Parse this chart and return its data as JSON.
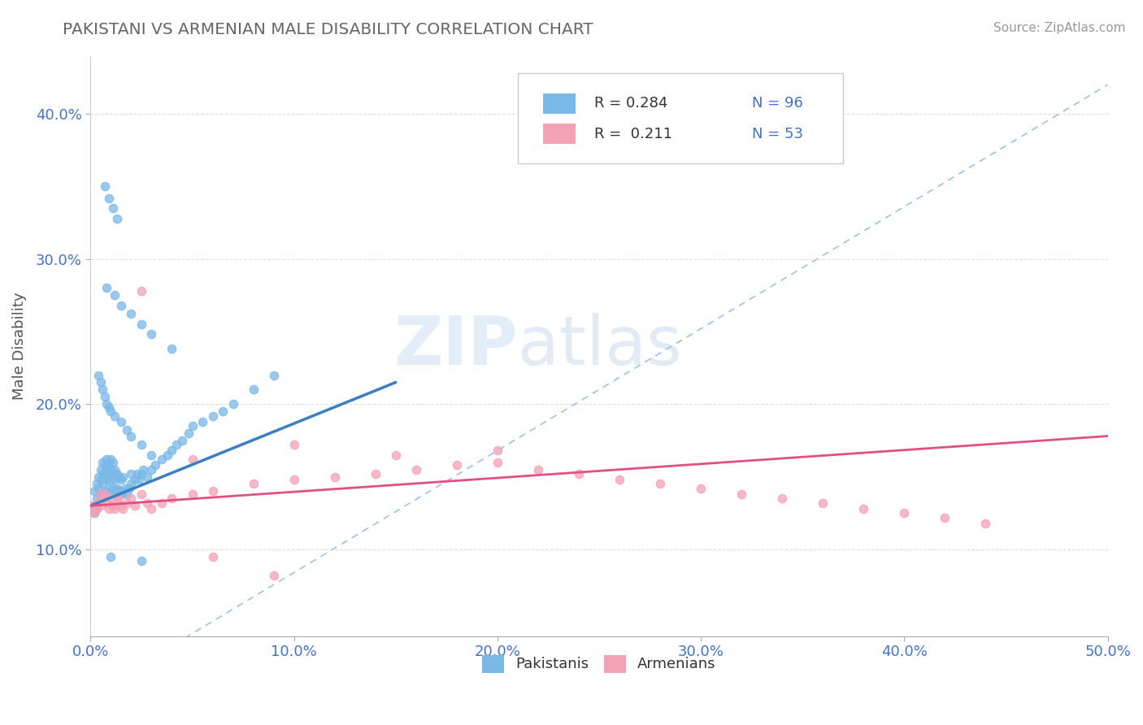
{
  "title": "PAKISTANI VS ARMENIAN MALE DISABILITY CORRELATION CHART",
  "source": "Source: ZipAtlas.com",
  "ylabel": "Male Disability",
  "xlim": [
    0.0,
    0.5
  ],
  "ylim": [
    0.04,
    0.44
  ],
  "xtick_vals": [
    0.0,
    0.1,
    0.2,
    0.3,
    0.4,
    0.5
  ],
  "ytick_vals": [
    0.1,
    0.2,
    0.3,
    0.4
  ],
  "pakistani_color": "#7ab8e8",
  "armenian_color": "#f4a0b5",
  "trendline_pk_color": "#3a7fc1",
  "trendline_am_color": "#e05080",
  "ref_line_color": "#a0c0e0",
  "watermark_color": "#d5e8f5",
  "pk_x": [
    0.001,
    0.002,
    0.002,
    0.003,
    0.003,
    0.003,
    0.004,
    0.004,
    0.004,
    0.005,
    0.005,
    0.005,
    0.006,
    0.006,
    0.006,
    0.006,
    0.007,
    0.007,
    0.007,
    0.008,
    0.008,
    0.008,
    0.008,
    0.009,
    0.009,
    0.009,
    0.01,
    0.01,
    0.01,
    0.01,
    0.011,
    0.011,
    0.011,
    0.012,
    0.012,
    0.012,
    0.013,
    0.013,
    0.014,
    0.014,
    0.015,
    0.015,
    0.016,
    0.016,
    0.017,
    0.018,
    0.019,
    0.02,
    0.02,
    0.022,
    0.023,
    0.024,
    0.025,
    0.026,
    0.028,
    0.03,
    0.032,
    0.035,
    0.038,
    0.04,
    0.042,
    0.045,
    0.048,
    0.05,
    0.055,
    0.06,
    0.065,
    0.07,
    0.08,
    0.09,
    0.004,
    0.005,
    0.006,
    0.007,
    0.008,
    0.009,
    0.01,
    0.012,
    0.015,
    0.018,
    0.02,
    0.025,
    0.03,
    0.008,
    0.012,
    0.015,
    0.02,
    0.025,
    0.03,
    0.04,
    0.007,
    0.009,
    0.011,
    0.013,
    0.01,
    0.025
  ],
  "pk_y": [
    0.13,
    0.125,
    0.14,
    0.135,
    0.128,
    0.145,
    0.132,
    0.142,
    0.15,
    0.138,
    0.148,
    0.155,
    0.135,
    0.145,
    0.152,
    0.16,
    0.14,
    0.15,
    0.158,
    0.138,
    0.148,
    0.155,
    0.162,
    0.142,
    0.152,
    0.16,
    0.138,
    0.148,
    0.155,
    0.162,
    0.142,
    0.152,
    0.16,
    0.138,
    0.148,
    0.155,
    0.142,
    0.152,
    0.14,
    0.15,
    0.138,
    0.148,
    0.14,
    0.15,
    0.142,
    0.138,
    0.142,
    0.145,
    0.152,
    0.148,
    0.152,
    0.148,
    0.152,
    0.155,
    0.15,
    0.155,
    0.158,
    0.162,
    0.165,
    0.168,
    0.172,
    0.175,
    0.18,
    0.185,
    0.188,
    0.192,
    0.195,
    0.2,
    0.21,
    0.22,
    0.22,
    0.215,
    0.21,
    0.205,
    0.2,
    0.198,
    0.195,
    0.192,
    0.188,
    0.182,
    0.178,
    0.172,
    0.165,
    0.28,
    0.275,
    0.268,
    0.262,
    0.255,
    0.248,
    0.238,
    0.35,
    0.342,
    0.335,
    0.328,
    0.095,
    0.092
  ],
  "am_x": [
    0.001,
    0.002,
    0.003,
    0.004,
    0.005,
    0.005,
    0.006,
    0.007,
    0.008,
    0.009,
    0.01,
    0.011,
    0.012,
    0.013,
    0.014,
    0.015,
    0.016,
    0.018,
    0.02,
    0.022,
    0.025,
    0.028,
    0.03,
    0.035,
    0.04,
    0.05,
    0.06,
    0.08,
    0.1,
    0.12,
    0.14,
    0.16,
    0.18,
    0.2,
    0.22,
    0.24,
    0.26,
    0.28,
    0.3,
    0.32,
    0.34,
    0.36,
    0.38,
    0.4,
    0.42,
    0.44,
    0.025,
    0.05,
    0.1,
    0.15,
    0.2,
    0.06,
    0.09
  ],
  "am_y": [
    0.13,
    0.125,
    0.128,
    0.132,
    0.13,
    0.138,
    0.135,
    0.138,
    0.132,
    0.128,
    0.135,
    0.13,
    0.128,
    0.132,
    0.135,
    0.13,
    0.128,
    0.132,
    0.135,
    0.13,
    0.138,
    0.132,
    0.128,
    0.132,
    0.135,
    0.138,
    0.14,
    0.145,
    0.148,
    0.15,
    0.152,
    0.155,
    0.158,
    0.16,
    0.155,
    0.152,
    0.148,
    0.145,
    0.142,
    0.138,
    0.135,
    0.132,
    0.128,
    0.125,
    0.122,
    0.118,
    0.278,
    0.162,
    0.172,
    0.165,
    0.168,
    0.095,
    0.082
  ],
  "pk_trend": [
    0.0,
    0.15,
    0.13,
    0.215
  ],
  "am_trend": [
    0.0,
    0.5,
    0.13,
    0.178
  ],
  "ref_line": [
    0.0,
    0.5,
    0.0,
    0.42
  ]
}
